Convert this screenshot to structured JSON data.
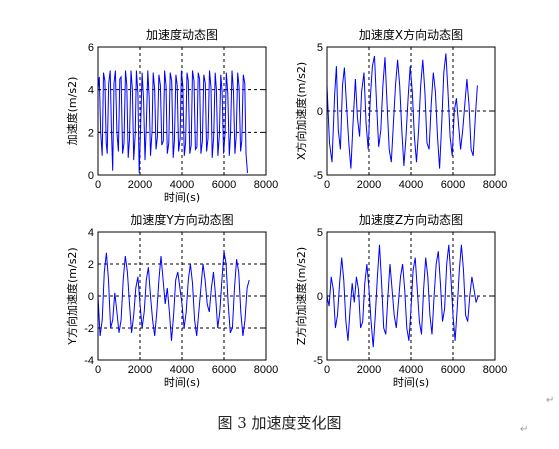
{
  "caption": "图 3  加速度变化图",
  "chart_data": [
    {
      "type": "line",
      "title": "加速度动态图",
      "xlabel": "时间(s)",
      "ylabel": "加速度(m/s2)",
      "xlim": [
        0,
        8000
      ],
      "ylim": [
        0,
        6
      ],
      "xticks": [
        0,
        2000,
        4000,
        6000,
        8000
      ],
      "yticks": [
        0,
        2,
        4,
        6
      ],
      "grid": "dashed",
      "color": "#0000ff",
      "series": [
        {
          "x": [
            0,
            60,
            130,
            200,
            260,
            330,
            390,
            440,
            510,
            580,
            640,
            700,
            760,
            830,
            900,
            970,
            1040,
            1100,
            1170,
            1240,
            1310,
            1370,
            1440,
            1500,
            1570,
            1640,
            1700,
            1770,
            1830,
            1900,
            1960,
            2030,
            2100,
            2170,
            2240,
            2300,
            2370,
            2440,
            2500,
            2570,
            2630,
            2700,
            2760,
            2830,
            2900,
            2970,
            3040,
            3110,
            3170,
            3240,
            3300,
            3370,
            3440,
            3510,
            3580,
            3640,
            3710,
            3770,
            3840,
            3910,
            3970,
            4040,
            4110,
            4170,
            4240,
            4300,
            4370,
            4440,
            4500,
            4570,
            4640,
            4710,
            4770,
            4840,
            4900,
            4970,
            5040,
            5110,
            5170,
            5240,
            5310,
            5380,
            5440,
            5510,
            5580,
            5640,
            5710,
            5780,
            5850,
            5910,
            5980,
            6050,
            6110,
            6180,
            6250,
            6310,
            6380,
            6450,
            6520,
            6580,
            6650,
            6720,
            6790,
            6850,
            6920,
            6990,
            7050,
            7120
          ],
          "y": [
            4.0,
            4.6,
            2.0,
            0.9,
            4.8,
            4.4,
            1.5,
            1.0,
            4.3,
            4.9,
            2.2,
            0.2,
            4.3,
            4.9,
            2.0,
            1.1,
            4.5,
            4.6,
            1.0,
            1.5,
            4.9,
            4.2,
            0.8,
            1.7,
            4.9,
            4.0,
            0.7,
            1.9,
            4.9,
            3.8,
            0.1,
            2.2,
            4.8,
            3.5,
            0.7,
            2.3,
            4.9,
            3.6,
            0.9,
            2.0,
            4.8,
            4.0,
            1.2,
            1.8,
            4.7,
            4.2,
            1.4,
            1.6,
            4.9,
            4.2,
            1.0,
            1.5,
            4.8,
            4.4,
            0.8,
            1.6,
            4.7,
            4.2,
            1.1,
            1.7,
            4.9,
            4.2,
            0.9,
            1.5,
            4.8,
            4.4,
            1.0,
            1.4,
            4.9,
            4.4,
            1.2,
            1.3,
            4.8,
            4.5,
            1.0,
            1.6,
            4.7,
            4.3,
            1.1,
            1.7,
            4.9,
            4.1,
            0.8,
            1.8,
            4.8,
            4.0,
            0.9,
            1.9,
            4.7,
            3.9,
            1.0,
            2.0,
            4.8,
            3.8,
            0.9,
            1.9,
            4.9,
            3.9,
            1.0,
            1.8,
            4.8,
            4.1,
            1.1,
            1.6,
            4.7,
            4.3,
            1.0,
            0.1
          ]
        }
      ]
    },
    {
      "type": "line",
      "title": "加速度X方向动态图",
      "xlabel": "",
      "ylabel": "X方向加速度(m/s2)",
      "xlim": [
        0,
        8000
      ],
      "ylim": [
        -5,
        5
      ],
      "xticks": [
        0,
        2000,
        4000,
        6000,
        8000
      ],
      "yticks": [
        -5,
        0,
        5
      ],
      "grid": "dashed",
      "color": "#0000ff",
      "series": [
        {
          "x": [
            0,
            120,
            240,
            360,
            450,
            540,
            640,
            740,
            830,
            930,
            1040,
            1140,
            1240,
            1350,
            1450,
            1550,
            1650,
            1760,
            1860,
            1960,
            2060,
            2160,
            2260,
            2360,
            2460,
            2560,
            2660,
            2760,
            2860,
            2960,
            3060,
            3160,
            3260,
            3360,
            3460,
            3560,
            3660,
            3760,
            3860,
            3960,
            4060,
            4160,
            4260,
            4360,
            4460,
            4560,
            4660,
            4760,
            4860,
            4960,
            5060,
            5160,
            5260,
            5360,
            5460,
            5560,
            5660,
            5760,
            5860,
            5960,
            6060,
            6160,
            6260,
            6360,
            6460,
            6560,
            6660,
            6760,
            6860,
            6960,
            7060,
            7160
          ],
          "y": [
            2.0,
            -2.5,
            -4.0,
            1.2,
            3.5,
            -1.5,
            -3.0,
            2.0,
            3.4,
            0.5,
            -2.5,
            -4.5,
            -1.0,
            2.5,
            -0.5,
            -2.0,
            1.5,
            3.0,
            -1.0,
            -3.0,
            1.0,
            3.5,
            4.3,
            0.5,
            -2.8,
            -1.5,
            2.0,
            4.2,
            0.5,
            -3.0,
            -4.0,
            -1.0,
            2.0,
            4.0,
            2.0,
            -1.5,
            -4.3,
            -2.0,
            1.0,
            3.5,
            1.5,
            -2.0,
            -4.0,
            -1.5,
            2.0,
            4.0,
            1.5,
            -2.5,
            -3.0,
            0.5,
            3.0,
            1.5,
            -2.0,
            -4.5,
            -1.0,
            3.0,
            4.5,
            1.5,
            -2.0,
            -3.5,
            0.0,
            1.0,
            -1.0,
            -3.0,
            -1.5,
            0.5,
            2.5,
            0.5,
            -3.0,
            -3.5,
            -0.5,
            2.0
          ]
        }
      ]
    },
    {
      "type": "line",
      "title": "加速度Y方向动态图",
      "xlabel": "时间(s)",
      "ylabel": "Y方向加速度(m/s2)",
      "xlim": [
        0,
        8000
      ],
      "ylim": [
        -4,
        4
      ],
      "xticks": [
        0,
        2000,
        4000,
        6000,
        8000
      ],
      "yticks": [
        -4,
        -2,
        0,
        2,
        4
      ],
      "grid": "dashed",
      "color": "#0000ff",
      "series": [
        {
          "x": [
            0,
            100,
            200,
            300,
            400,
            500,
            600,
            700,
            800,
            900,
            1000,
            1100,
            1200,
            1300,
            1400,
            1500,
            1600,
            1700,
            1800,
            1900,
            2000,
            2100,
            2200,
            2300,
            2400,
            2500,
            2600,
            2700,
            2800,
            2900,
            3000,
            3100,
            3200,
            3300,
            3400,
            3500,
            3600,
            3700,
            3800,
            3900,
            4000,
            4100,
            4200,
            4300,
            4400,
            4500,
            4600,
            4700,
            4800,
            4900,
            5000,
            5100,
            5200,
            5300,
            5400,
            5500,
            5600,
            5700,
            5800,
            5900,
            6000,
            6100,
            6200,
            6300,
            6400,
            6500,
            6600,
            6700,
            6800,
            6900,
            7000,
            7100,
            7200
          ],
          "y": [
            0.0,
            -2.5,
            -1.5,
            1.5,
            2.7,
            1.0,
            -2.0,
            -1.5,
            0.2,
            -1.0,
            -2.3,
            -1.5,
            1.0,
            2.5,
            1.5,
            -0.5,
            -2.3,
            -1.2,
            0.5,
            1.2,
            -0.5,
            -2.0,
            -1.0,
            1.0,
            1.8,
            0.0,
            -1.5,
            -2.5,
            -1.0,
            1.0,
            2.5,
            1.0,
            -0.5,
            0.5,
            -1.0,
            -2.8,
            -1.2,
            1.0,
            1.5,
            0.5,
            -0.5,
            -2.0,
            -1.0,
            1.0,
            2.0,
            0.8,
            -1.5,
            -2.5,
            -1.0,
            0.5,
            2.0,
            1.0,
            -0.5,
            -1.0,
            0.5,
            1.5,
            0.0,
            -2.0,
            -1.0,
            1.0,
            2.8,
            2.0,
            -0.5,
            -2.3,
            -2.0,
            0.5,
            2.3,
            1.5,
            -1.0,
            -2.5,
            -1.5,
            0.5,
            1.0
          ]
        }
      ]
    },
    {
      "type": "line",
      "title": "加速度Z方向动态图",
      "xlabel": "时间(s)",
      "ylabel": "Z方向加速度(m/s2)",
      "xlim": [
        0,
        8000
      ],
      "ylim": [
        -5,
        5
      ],
      "xticks": [
        0,
        2000,
        4000,
        6000,
        8000
      ],
      "yticks": [
        -5,
        0,
        5
      ],
      "grid": "dashed",
      "color": "#0000ff",
      "series": [
        {
          "x": [
            0,
            100,
            200,
            300,
            400,
            500,
            600,
            700,
            800,
            900,
            1000,
            1100,
            1200,
            1300,
            1400,
            1500,
            1600,
            1700,
            1800,
            1900,
            2000,
            2100,
            2200,
            2300,
            2400,
            2500,
            2600,
            2700,
            2800,
            2900,
            3000,
            3100,
            3200,
            3300,
            3400,
            3500,
            3600,
            3700,
            3800,
            3900,
            4000,
            4100,
            4200,
            4300,
            4400,
            4500,
            4600,
            4700,
            4800,
            4900,
            5000,
            5100,
            5200,
            5300,
            5400,
            5500,
            5600,
            5700,
            5800,
            5900,
            6000,
            6100,
            6200,
            6300,
            6400,
            6500,
            6600,
            6700,
            6800,
            6900,
            7000,
            7100,
            7200
          ],
          "y": [
            0.0,
            -0.8,
            1.5,
            0.5,
            -2.5,
            -1.5,
            1.0,
            3.0,
            1.2,
            -2.0,
            -3.5,
            -1.0,
            1.0,
            -0.5,
            1.5,
            0.5,
            -2.5,
            -2.0,
            1.0,
            2.5,
            0.5,
            -2.0,
            -4.0,
            -1.5,
            1.5,
            4.0,
            1.0,
            -2.5,
            -3.0,
            0.0,
            2.5,
            0.5,
            -1.5,
            -2.5,
            -0.5,
            1.5,
            2.5,
            0.5,
            -2.5,
            -3.5,
            -1.0,
            2.0,
            3.0,
            0.5,
            -2.0,
            -3.0,
            0.5,
            3.0,
            1.5,
            -1.5,
            -3.0,
            0.0,
            2.5,
            3.5,
            1.0,
            -2.0,
            -1.0,
            2.5,
            4.0,
            1.5,
            -1.5,
            -3.5,
            -1.0,
            2.0,
            4.0,
            2.0,
            -1.5,
            -2.0,
            0.0,
            1.5,
            0.5,
            -0.5,
            0.0
          ]
        }
      ]
    }
  ]
}
